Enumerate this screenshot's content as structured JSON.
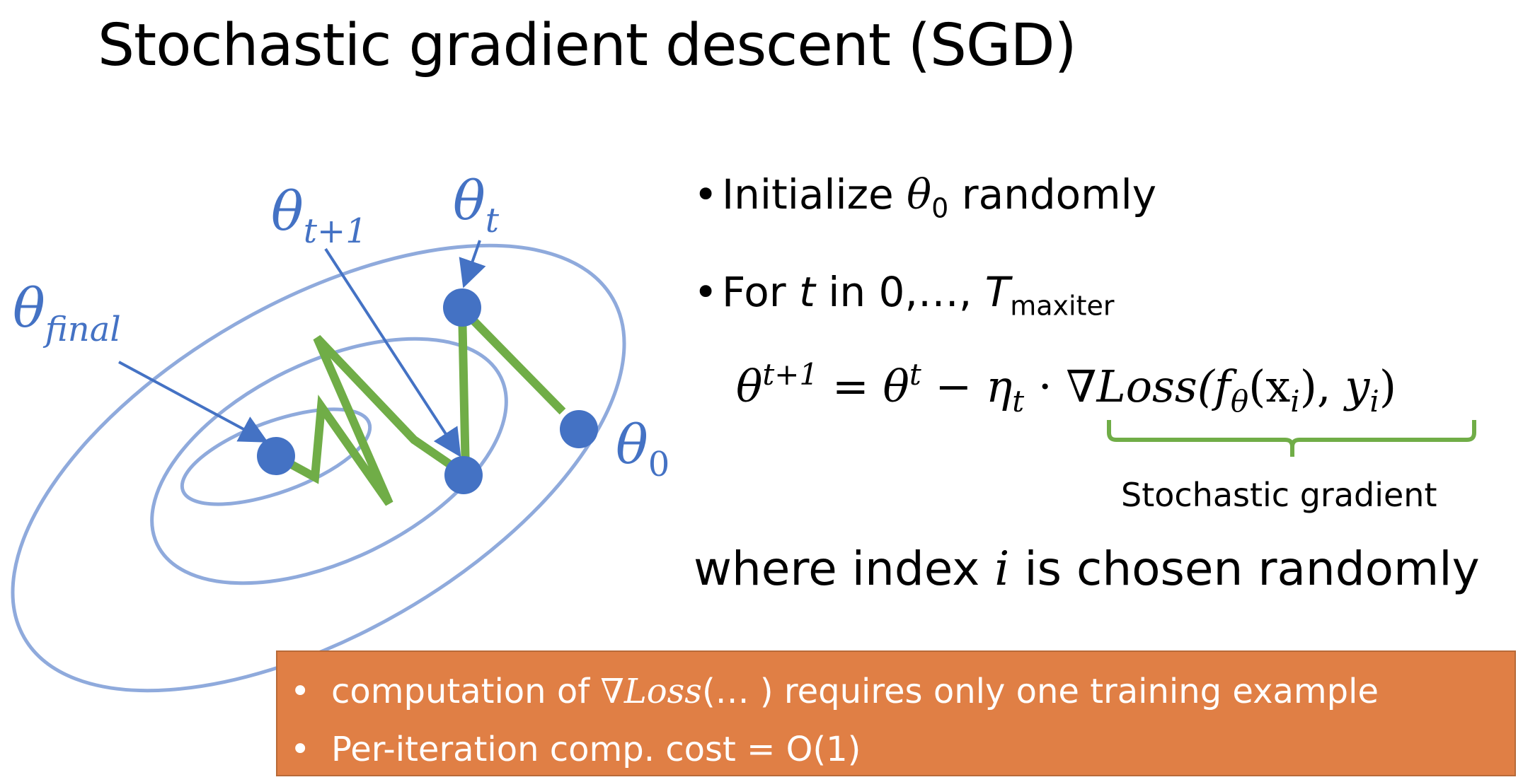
{
  "title": "Stochastic gradient descent (SGD)",
  "diagram": {
    "labels": {
      "theta_final": {
        "base": "θ",
        "sub": "final"
      },
      "theta_t1": {
        "base": "θ",
        "sub": "t+1"
      },
      "theta_t": {
        "base": "θ",
        "sub": "t"
      },
      "theta_0": {
        "base": "θ",
        "sub": "0"
      }
    },
    "colors": {
      "contour": "#8faadc",
      "point": "#4472c4",
      "path": "#70ad47",
      "label": "#4472c4"
    }
  },
  "bullets": {
    "b1": {
      "dot": "•",
      "pre": "Initialize ",
      "var": "θ",
      "sub": "0",
      "post": " randomly"
    },
    "b2": {
      "dot": "•",
      "pre": "For ",
      "var": "t",
      "mid": " in 0,…, ",
      "T": "T",
      "sub": "maxiter"
    }
  },
  "equation": {
    "lhs": "θ",
    "lhs_sup": "t+1",
    "eq": " = ",
    "theta": "θ",
    "theta_sup": "t",
    "minus": " − ",
    "eta": "η",
    "eta_sub": "t",
    "dot": " · ",
    "grad": "∇Loss(",
    "f": "f",
    "f_sub": "θ",
    "x": "(x",
    "x_sub": "i",
    "mid": "), ",
    "y": "y",
    "y_sub": "i",
    "close": ")"
  },
  "gradient_label": "Stochastic gradient",
  "where": {
    "pre": "where index ",
    "var": "i",
    "post": " is chosen randomly"
  },
  "notes": {
    "bullet": "•",
    "n1": {
      "pre": "computation of ",
      "math": "∇Loss",
      "post": "(… ) requires only one training example"
    },
    "n2": "Per-iteration comp. cost = O(1)"
  },
  "colors": {
    "note_bg": "#e07f45",
    "brace": "#70ad47"
  }
}
